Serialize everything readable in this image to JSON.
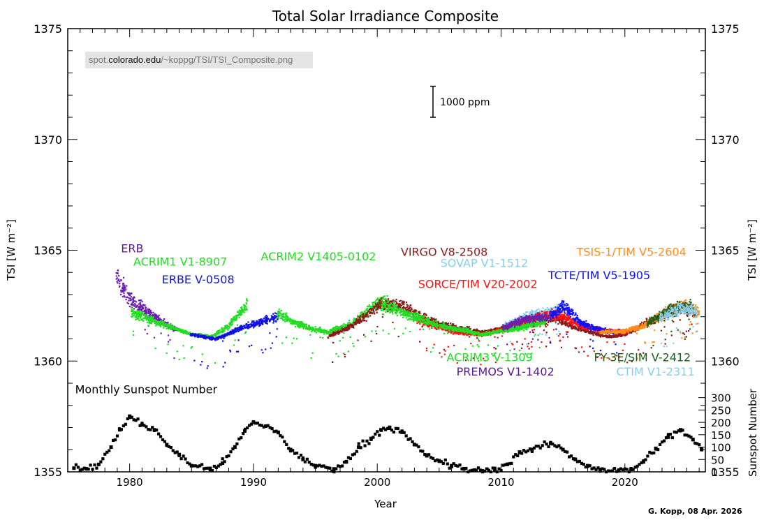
{
  "chart_data": {
    "type": "scatter",
    "title": "Total Solar Irradiance Composite",
    "xlabel": "Year",
    "ylabel_left": "TSI [W m⁻²]",
    "ylabel_right_upper": "TSI [W m⁻²]",
    "ylabel_right_lower": "Sunspot Number",
    "xlim": [
      1975,
      2026.5
    ],
    "ylim": [
      1355,
      1375
    ],
    "x_ticks": [
      1980,
      1990,
      2000,
      2010,
      2020
    ],
    "y_ticks": [
      1355,
      1360,
      1365,
      1370,
      1375
    ],
    "sunspot_ticks": [
      0,
      50,
      100,
      150,
      200,
      250,
      300
    ],
    "sunspot_axis_map": {
      "ssn0_tsi": 1355,
      "ssn300_tsi": 1358.35
    },
    "scale_bar_label": "1000 ppm",
    "scale_bar_tsi": [
      1371,
      1372.4
    ],
    "scale_bar_year": 2004.5,
    "grid": false,
    "series": [
      {
        "name": "ERB",
        "color": "#6a1fb0",
        "segments": [
          [
            1978.9,
            1363.8
          ],
          [
            1980.0,
            1362.8
          ],
          [
            1982.0,
            1362.0
          ],
          [
            1983.8,
            1361.4
          ]
        ]
      },
      {
        "name": "ACRIM1 V1-8907",
        "color": "#22dd22",
        "segments": [
          [
            1980.1,
            1362.2
          ],
          [
            1981.0,
            1362.0
          ],
          [
            1983.0,
            1361.6
          ],
          [
            1985.0,
            1361.2
          ],
          [
            1986.6,
            1361.1
          ],
          [
            1988.0,
            1361.6
          ],
          [
            1989.5,
            1362.6
          ]
        ]
      },
      {
        "name": "ERBE V-0508",
        "color": "#1111dd",
        "segments": [
          [
            1984.9,
            1361.2
          ],
          [
            1987.0,
            1361.0
          ],
          [
            1989.0,
            1361.5
          ],
          [
            1992.0,
            1362.0
          ]
        ]
      },
      {
        "name": "ACRIM2 V1405-0102",
        "color": "#22dd22",
        "segments": [
          [
            1991.9,
            1362.2
          ],
          [
            1993.0,
            1361.8
          ],
          [
            1994.5,
            1361.5
          ],
          [
            1996.0,
            1361.3
          ],
          [
            1998.0,
            1361.7
          ],
          [
            2000.0,
            1362.6
          ],
          [
            2001.0,
            1362.6
          ]
        ]
      },
      {
        "name": "VIRGO V8-2508",
        "color": "#8b1a1a",
        "segments": [
          [
            1996.0,
            1361.1
          ],
          [
            1998.0,
            1361.6
          ],
          [
            2000.3,
            1362.6
          ],
          [
            2002.0,
            1362.5
          ],
          [
            2003.5,
            1362.0
          ],
          [
            2005.5,
            1361.6
          ],
          [
            2008.5,
            1361.3
          ],
          [
            2010.5,
            1361.5
          ],
          [
            2012.0,
            1361.8
          ],
          [
            2014.5,
            1361.9
          ],
          [
            2016.5,
            1361.4
          ],
          [
            2018.5,
            1361.1
          ],
          [
            2020.0,
            1361.2
          ],
          [
            2022.0,
            1361.8
          ],
          [
            2024.5,
            1362.4
          ],
          [
            2025.8,
            1362.1
          ]
        ]
      },
      {
        "name": "SOVAP V1-1512",
        "color": "#87ceeb",
        "segments": [
          [
            2010.3,
            1361.6
          ],
          [
            2012.5,
            1362.1
          ],
          [
            2014.8,
            1362.3
          ]
        ]
      },
      {
        "name": "SORCE/TIM V20-2002",
        "color": "#ff1111",
        "segments": [
          [
            2003.2,
            1361.9
          ],
          [
            2004.5,
            1361.6
          ],
          [
            2006.5,
            1361.3
          ],
          [
            2008.5,
            1361.2
          ],
          [
            2010.0,
            1361.4
          ],
          [
            2012.0,
            1361.8
          ],
          [
            2013.5,
            1362.1
          ],
          [
            2015.0,
            1362.0
          ],
          [
            2016.5,
            1361.6
          ],
          [
            2018.0,
            1361.4
          ],
          [
            2020.2,
            1361.3
          ]
        ]
      },
      {
        "name": "TCTE/TIM V5-1905",
        "color": "#1111ff",
        "segments": [
          [
            2013.9,
            1362.0
          ],
          [
            2015.0,
            1362.5
          ],
          [
            2016.5,
            1361.7
          ],
          [
            2018.0,
            1361.4
          ],
          [
            2019.5,
            1361.3
          ]
        ]
      },
      {
        "name": "TSIS-1/TIM V5-2604",
        "color": "#ff8c1a",
        "segments": [
          [
            2018.0,
            1361.3
          ],
          [
            2020.0,
            1361.35
          ],
          [
            2021.5,
            1361.6
          ],
          [
            2023.0,
            1362.1
          ],
          [
            2024.5,
            1362.5
          ],
          [
            2026.0,
            1362.2
          ]
        ]
      },
      {
        "name": "ACRIM3 V-1309",
        "color": "#22dd22",
        "segments": [
          [
            2000.3,
            1362.6
          ],
          [
            2002.0,
            1362.2
          ],
          [
            2005.0,
            1361.6
          ],
          [
            2008.5,
            1361.2
          ],
          [
            2011.5,
            1361.5
          ],
          [
            2013.6,
            1361.8
          ]
        ]
      },
      {
        "name": "PREMOS V1-1402",
        "color": "#6a1fb0",
        "segments": [
          [
            2010.1,
            1361.5
          ],
          [
            2012.0,
            1361.9
          ],
          [
            2014.0,
            1362.0
          ]
        ]
      },
      {
        "name": "FY-3E/SIM V-2412",
        "color": "#1a5c1a",
        "segments": [
          [
            2021.8,
            1361.7
          ],
          [
            2023.5,
            1362.3
          ],
          [
            2025.5,
            1362.5
          ]
        ]
      },
      {
        "name": "CTIM V1-2311",
        "color": "#87ceeb",
        "segments": [
          [
            2022.8,
            1361.9
          ],
          [
            2024.5,
            1362.4
          ],
          [
            2025.8,
            1362.2
          ]
        ]
      }
    ],
    "series_labels": [
      {
        "text": "ERB",
        "color": "#5a189a",
        "year": 1979.3,
        "tsi": 1364.9
      },
      {
        "text": "ACRIM1 V1-8907",
        "color": "#22dd22",
        "year": 1980.3,
        "tsi": 1364.3
      },
      {
        "text": "ERBE V-0508",
        "color": "#1111dd",
        "year": 1982.6,
        "tsi": 1363.5
      },
      {
        "text": "ACRIM2 V1405-0102",
        "color": "#22dd22",
        "year": 1990.6,
        "tsi": 1364.55
      },
      {
        "text": "VIRGO V8-2508",
        "color": "#8b1a1a",
        "year": 2001.9,
        "tsi": 1364.75
      },
      {
        "text": "SOVAP V1-1512",
        "color": "#87ceeb",
        "year": 2005.1,
        "tsi": 1364.25
      },
      {
        "text": "SORCE/TIM V20-2002",
        "color": "#ff1111",
        "year": 2003.3,
        "tsi": 1363.3
      },
      {
        "text": "TCTE/TIM V5-1905",
        "color": "#1111ff",
        "year": 2013.8,
        "tsi": 1363.7
      },
      {
        "text": "TSIS-1/TIM V5-2604",
        "color": "#ff8c1a",
        "year": 2016.1,
        "tsi": 1364.75
      },
      {
        "text": "ACRIM3 V-1309",
        "color": "#22dd22",
        "year": 2005.6,
        "tsi": 1360.0
      },
      {
        "text": "PREMOS V1-1402",
        "color": "#5a189a",
        "year": 2006.4,
        "tsi": 1359.35
      },
      {
        "text": "FY-3E/SIM V-2412",
        "color": "#1a5c1a",
        "year": 2017.5,
        "tsi": 1360.0
      },
      {
        "text": "CTIM V1-2311",
        "color": "#87ceeb",
        "year": 2019.3,
        "tsi": 1359.35
      }
    ],
    "sunspot_label": "Monthly Sunspot Number",
    "sunspot_label_pos": {
      "year": 1975.6,
      "tsi": 1358.55
    },
    "sunspot_number": {
      "name": "Monthly Sunspot Number",
      "color": "#000000",
      "x": [
        1975.5,
        1976.5,
        1977.5,
        1978.5,
        1979.2,
        1980.0,
        1981.0,
        1982.0,
        1983.0,
        1984.0,
        1985.0,
        1986.5,
        1987.5,
        1988.5,
        1989.3,
        1990.0,
        1991.0,
        1992.0,
        1993.0,
        1994.0,
        1995.0,
        1996.5,
        1997.5,
        1998.5,
        1999.5,
        2000.3,
        2001.0,
        2002.0,
        2003.0,
        2004.0,
        2005.0,
        2006.0,
        2007.0,
        2008.5,
        2009.5,
        2010.5,
        2011.5,
        2012.5,
        2014.0,
        2015.0,
        2016.0,
        2017.0,
        2018.0,
        2019.5,
        2020.5,
        2021.5,
        2022.5,
        2023.5,
        2024.5,
        2025.5,
        2026.2
      ],
      "values": [
        15,
        12,
        30,
        100,
        170,
        225,
        190,
        170,
        110,
        70,
        25,
        14,
        35,
        100,
        165,
        200,
        185,
        160,
        90,
        50,
        25,
        12,
        40,
        100,
        135,
        170,
        180,
        160,
        110,
        65,
        45,
        25,
        12,
        4,
        8,
        30,
        80,
        90,
        115,
        90,
        50,
        25,
        10,
        4,
        10,
        40,
        95,
        140,
        170,
        130,
        90
      ]
    }
  },
  "url": {
    "prefix": "spot.",
    "domain": "colorado.edu",
    "path": "/~koppg/TSI/TSI_Composite.png"
  },
  "credit": "G. Kopp, 08 Apr. 2026"
}
